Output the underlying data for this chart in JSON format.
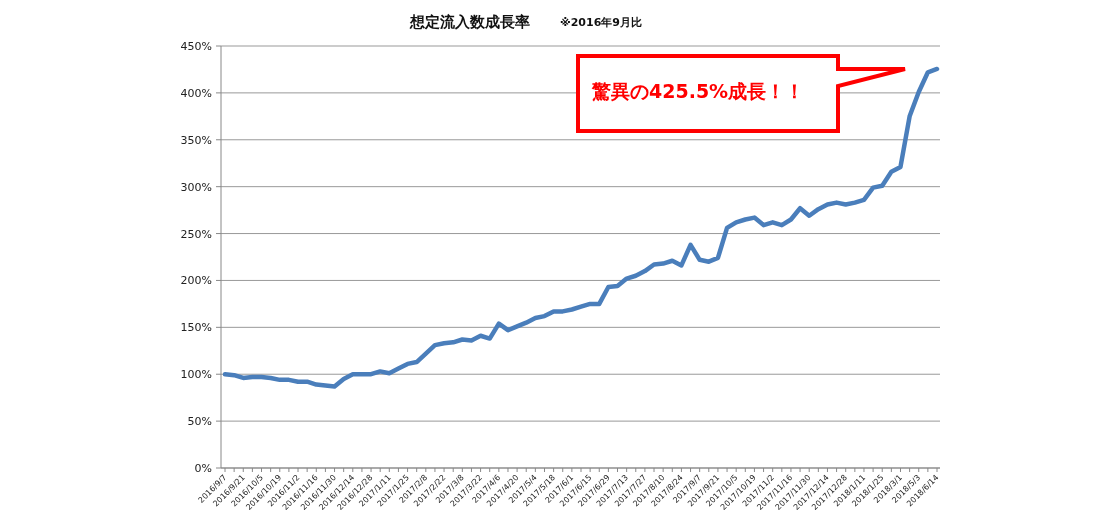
{
  "chart_data": {
    "type": "line",
    "title": "想定流入数成長率",
    "subtitle": "※2016年9月比",
    "categories": [
      "2016/9/7",
      null,
      "2016/9/21",
      null,
      "2016/10/5",
      null,
      "2016/10/19",
      null,
      "2016/11/2",
      null,
      "2016/11/16",
      null,
      "2016/11/30",
      null,
      "2016/12/14",
      null,
      "2016/12/28",
      null,
      "2017/1/11",
      null,
      "2017/1/25",
      null,
      "2017/2/8",
      null,
      "2017/2/22",
      null,
      "2017/3/8",
      null,
      "2017/3/22",
      null,
      "2017/4/6",
      null,
      "2017/4/20",
      null,
      "2017/5/4",
      null,
      "2017/5/18",
      null,
      "2017/6/1",
      null,
      "2017/6/15",
      null,
      "2017/6/29",
      null,
      "2017/7/13",
      null,
      "2017/7/27",
      null,
      "2017/8/10",
      null,
      "2017/8/24",
      null,
      "2017/9/7",
      null,
      "2017/9/21",
      null,
      "2017/10/5",
      null,
      "2017/10/19",
      null,
      "2017/11/2",
      null,
      "2017/11/16",
      null,
      "2017/11/30",
      null,
      "2017/12/14",
      null,
      "2017/12/28",
      null,
      "2018/1/11",
      null,
      "2018/1/25",
      null,
      "2018/3/1",
      null,
      "2018/5/3",
      null,
      "2018/6/14"
    ],
    "series": [
      {
        "color": "#4a7ebb",
        "values": [
          100,
          99,
          96,
          97,
          97,
          96,
          94,
          94,
          92,
          92,
          89,
          88,
          87,
          95,
          100,
          100,
          100,
          103,
          101,
          106,
          111,
          113,
          122,
          131,
          133,
          134,
          137,
          136,
          141,
          138,
          154,
          147,
          151,
          155,
          160,
          162,
          167,
          167,
          169,
          172,
          175,
          175,
          193,
          194,
          202,
          205,
          210,
          217,
          218,
          221,
          216,
          238,
          222,
          220,
          224,
          256,
          262,
          265,
          267,
          259,
          262,
          259,
          265,
          277,
          269,
          276,
          281,
          283,
          281,
          283,
          286,
          299,
          301,
          316,
          321,
          375,
          401,
          422,
          425.5
        ]
      }
    ],
    "ylim": [
      0,
      450
    ],
    "yticks": [
      {
        "value": 0,
        "label": "0%"
      },
      {
        "value": 50,
        "label": "50%"
      },
      {
        "value": 100,
        "label": "100%"
      },
      {
        "value": 150,
        "label": "150%"
      },
      {
        "value": 200,
        "label": "200%"
      },
      {
        "value": 250,
        "label": "250%"
      },
      {
        "value": 300,
        "label": "300%"
      },
      {
        "value": 350,
        "label": "350%"
      },
      {
        "value": 400,
        "label": "400%"
      },
      {
        "value": 450,
        "label": "450%"
      }
    ],
    "grid": "y",
    "marker": "none",
    "line_style": "solid",
    "annotations": [
      "驚異の425.5%成長！！"
    ]
  }
}
